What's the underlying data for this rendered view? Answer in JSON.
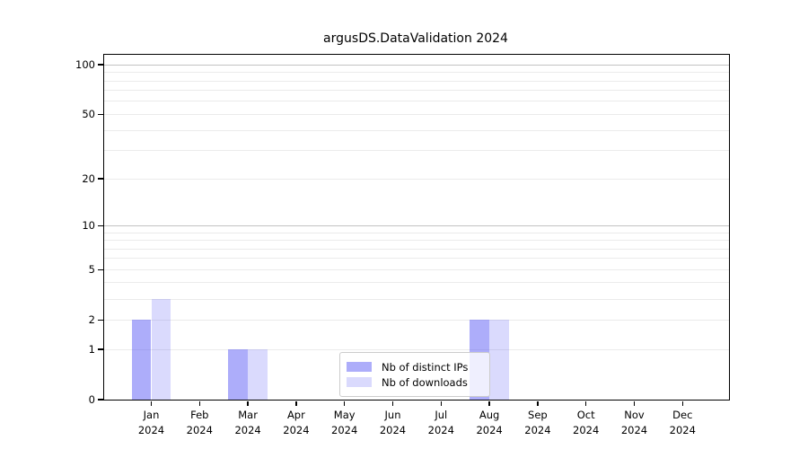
{
  "chart_data": {
    "type": "bar",
    "title": "argusDS.DataValidation 2024",
    "categories": [
      "Jan",
      "Feb",
      "Mar",
      "Apr",
      "May",
      "Jun",
      "Jul",
      "Aug",
      "Sep",
      "Oct",
      "Nov",
      "Dec"
    ],
    "category_year": "2024",
    "series": [
      {
        "name": "Nb of distinct IPs",
        "color": "rgba(80,80,245,0.47)",
        "color_on_white": "#acacfa",
        "values": [
          2,
          0,
          1,
          0,
          0,
          0,
          0,
          2,
          0,
          0,
          0,
          0
        ]
      },
      {
        "name": "Nb of downloads",
        "color": "rgba(80,80,245,0.21)",
        "color_on_white": "#dcdcfb",
        "values": [
          3,
          0,
          1,
          0,
          0,
          0,
          0,
          2,
          0,
          0,
          0,
          0
        ]
      }
    ],
    "xlabel": "",
    "ylabel": "",
    "y_axis": {
      "scale": "log1p",
      "tick_values": [
        0,
        1,
        2,
        5,
        10,
        20,
        50,
        100
      ],
      "range": [
        0,
        115
      ],
      "minor_gridlines": [
        1,
        2,
        3,
        4,
        5,
        6,
        7,
        8,
        9,
        20,
        30,
        40,
        50,
        60,
        70,
        80,
        90
      ],
      "major_gridlines": [
        10,
        100
      ]
    },
    "legend": {
      "position": "inside lower-center",
      "entries": [
        "Nb of distinct IPs",
        "Nb of downloads"
      ]
    },
    "grid": true,
    "colors": {
      "text": "#000000",
      "spine": "#000000",
      "major_grid": "#c2c2c2",
      "minor_grid": "#ebebeb",
      "legend_border": "#cccccc",
      "legend_bg": "rgba(255,255,255,0.8)",
      "background": "#ffffff"
    }
  }
}
